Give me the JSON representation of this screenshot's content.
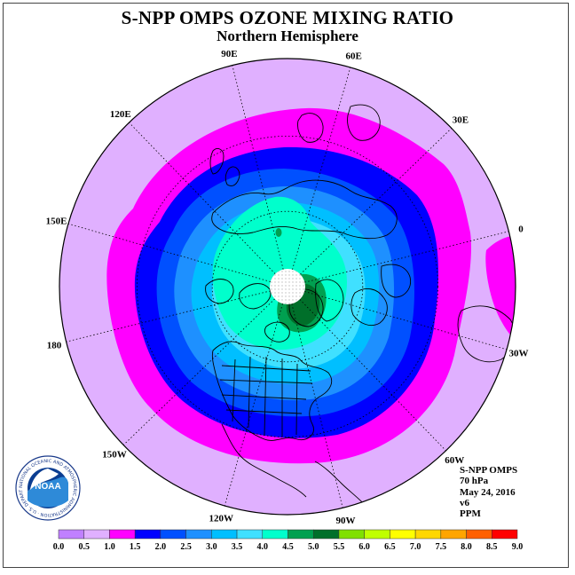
{
  "title": "S-NPP OMPS OZONE MIXING RATIO",
  "subtitle": "Northern Hemisphere",
  "longitude_labels": [
    {
      "label": "90E",
      "lon": 90
    },
    {
      "label": "60E",
      "lon": 60
    },
    {
      "label": "30E",
      "lon": 30
    },
    {
      "label": "0",
      "lon": 0
    },
    {
      "label": "30W",
      "lon": -30
    },
    {
      "label": "60W",
      "lon": -60
    },
    {
      "label": "90W",
      "lon": -90
    },
    {
      "label": "120W",
      "lon": -120
    },
    {
      "label": "150W",
      "lon": -150
    },
    {
      "label": "180",
      "lon": 180
    },
    {
      "label": "150E",
      "lon": 150
    },
    {
      "label": "120E",
      "lon": 120
    }
  ],
  "info": {
    "instrument": "S-NPP OMPS",
    "level": "70 hPa",
    "date": "May 24, 2016",
    "version": "v6",
    "units": "PPM"
  },
  "logo": {
    "text": "NOAA",
    "ring_text": "NATIONAL OCEANIC AND ATMOSPHERIC ADMINISTRATION · U.S. DEPARTMENT OF COMMERCE"
  },
  "colorbar": {
    "ticks": [
      "0.0",
      "0.5",
      "1.0",
      "1.5",
      "2.0",
      "2.5",
      "3.0",
      "3.5",
      "4.0",
      "4.5",
      "5.0",
      "5.5",
      "6.0",
      "6.5",
      "7.0",
      "7.5",
      "8.0",
      "8.5",
      "9.0"
    ],
    "colors": [
      "#c080ff",
      "#e0b0ff",
      "#ff00ff",
      "#0000ff",
      "#0050ff",
      "#1e90ff",
      "#00bfff",
      "#40e0ff",
      "#00ffcc",
      "#00a050",
      "#006f2a",
      "#80e000",
      "#c0ff00",
      "#ffff00",
      "#ffd700",
      "#ffa500",
      "#ff6000",
      "#ff0000",
      "#8b4513"
    ]
  },
  "map_colors": {
    "outside": "#e0b0ff",
    "c1": "#ff00ff",
    "c2": "#0000ff",
    "c3": "#0050ff",
    "c4": "#1e90ff",
    "c5": "#00bfff",
    "c6": "#40e0ff",
    "c7": "#00ffcc",
    "c8": "#00a050",
    "c9": "#006f2a"
  }
}
